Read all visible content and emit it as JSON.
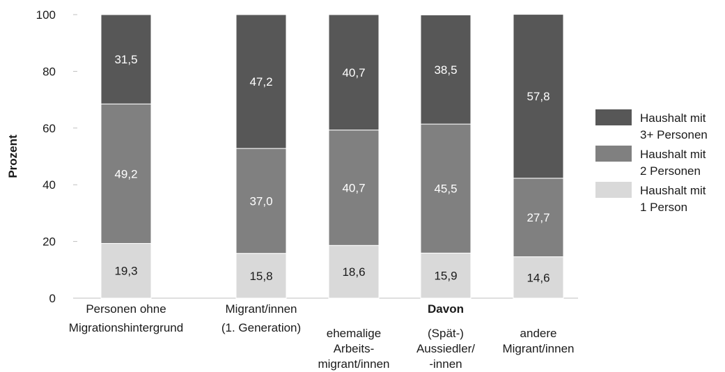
{
  "chart_data": {
    "type": "bar",
    "stacked": true,
    "ylabel": "Prozent",
    "ylim": [
      0,
      100
    ],
    "yticks": [
      0,
      20,
      40,
      60,
      80,
      100
    ],
    "grid": false,
    "legend_position": "right",
    "colors": {
      "1 Person": "#d9d9d9",
      "2 Personen": "#808080",
      "3+ Personen": "#575757",
      "axis": "#bfbfbf",
      "text": "#1a1a1a",
      "label_light": "#ffffff",
      "label_dark": "#1a1a1a"
    },
    "categories": [
      {
        "lines": [
          "Personen ohne",
          "Migrationshintergrund"
        ]
      },
      {
        "lines": [
          "Migrant/innen",
          "(1. Generation)"
        ]
      },
      {
        "lines": [
          "ehemalige",
          "Arbeits-",
          "migrant/innen"
        ]
      },
      {
        "lines": [
          "(Spät-)",
          "Aussiedler/",
          "-innen"
        ]
      },
      {
        "lines": [
          "andere",
          "Migrant/innen"
        ]
      }
    ],
    "group_label": "Davon",
    "series": [
      {
        "key": "1 Person",
        "legend": [
          "Haushalt mit",
          "1 Person"
        ],
        "values": [
          19.3,
          15.8,
          18.6,
          15.9,
          14.6
        ],
        "labels": [
          "19,3",
          "15,8",
          "18,6",
          "15,9",
          "14,6"
        ]
      },
      {
        "key": "2 Personen",
        "legend": [
          "Haushalt mit",
          "2 Personen"
        ],
        "values": [
          49.2,
          37.0,
          40.7,
          45.5,
          27.7
        ],
        "labels": [
          "49,2",
          "37,0",
          "40,7",
          "45,5",
          "27,7"
        ]
      },
      {
        "key": "3+ Personen",
        "legend": [
          "Haushalt mit",
          "3+ Personen"
        ],
        "values": [
          31.5,
          47.2,
          40.7,
          38.5,
          57.8
        ],
        "labels": [
          "31,5",
          "47,2",
          "40,7",
          "38,5",
          "57,8"
        ]
      }
    ]
  }
}
